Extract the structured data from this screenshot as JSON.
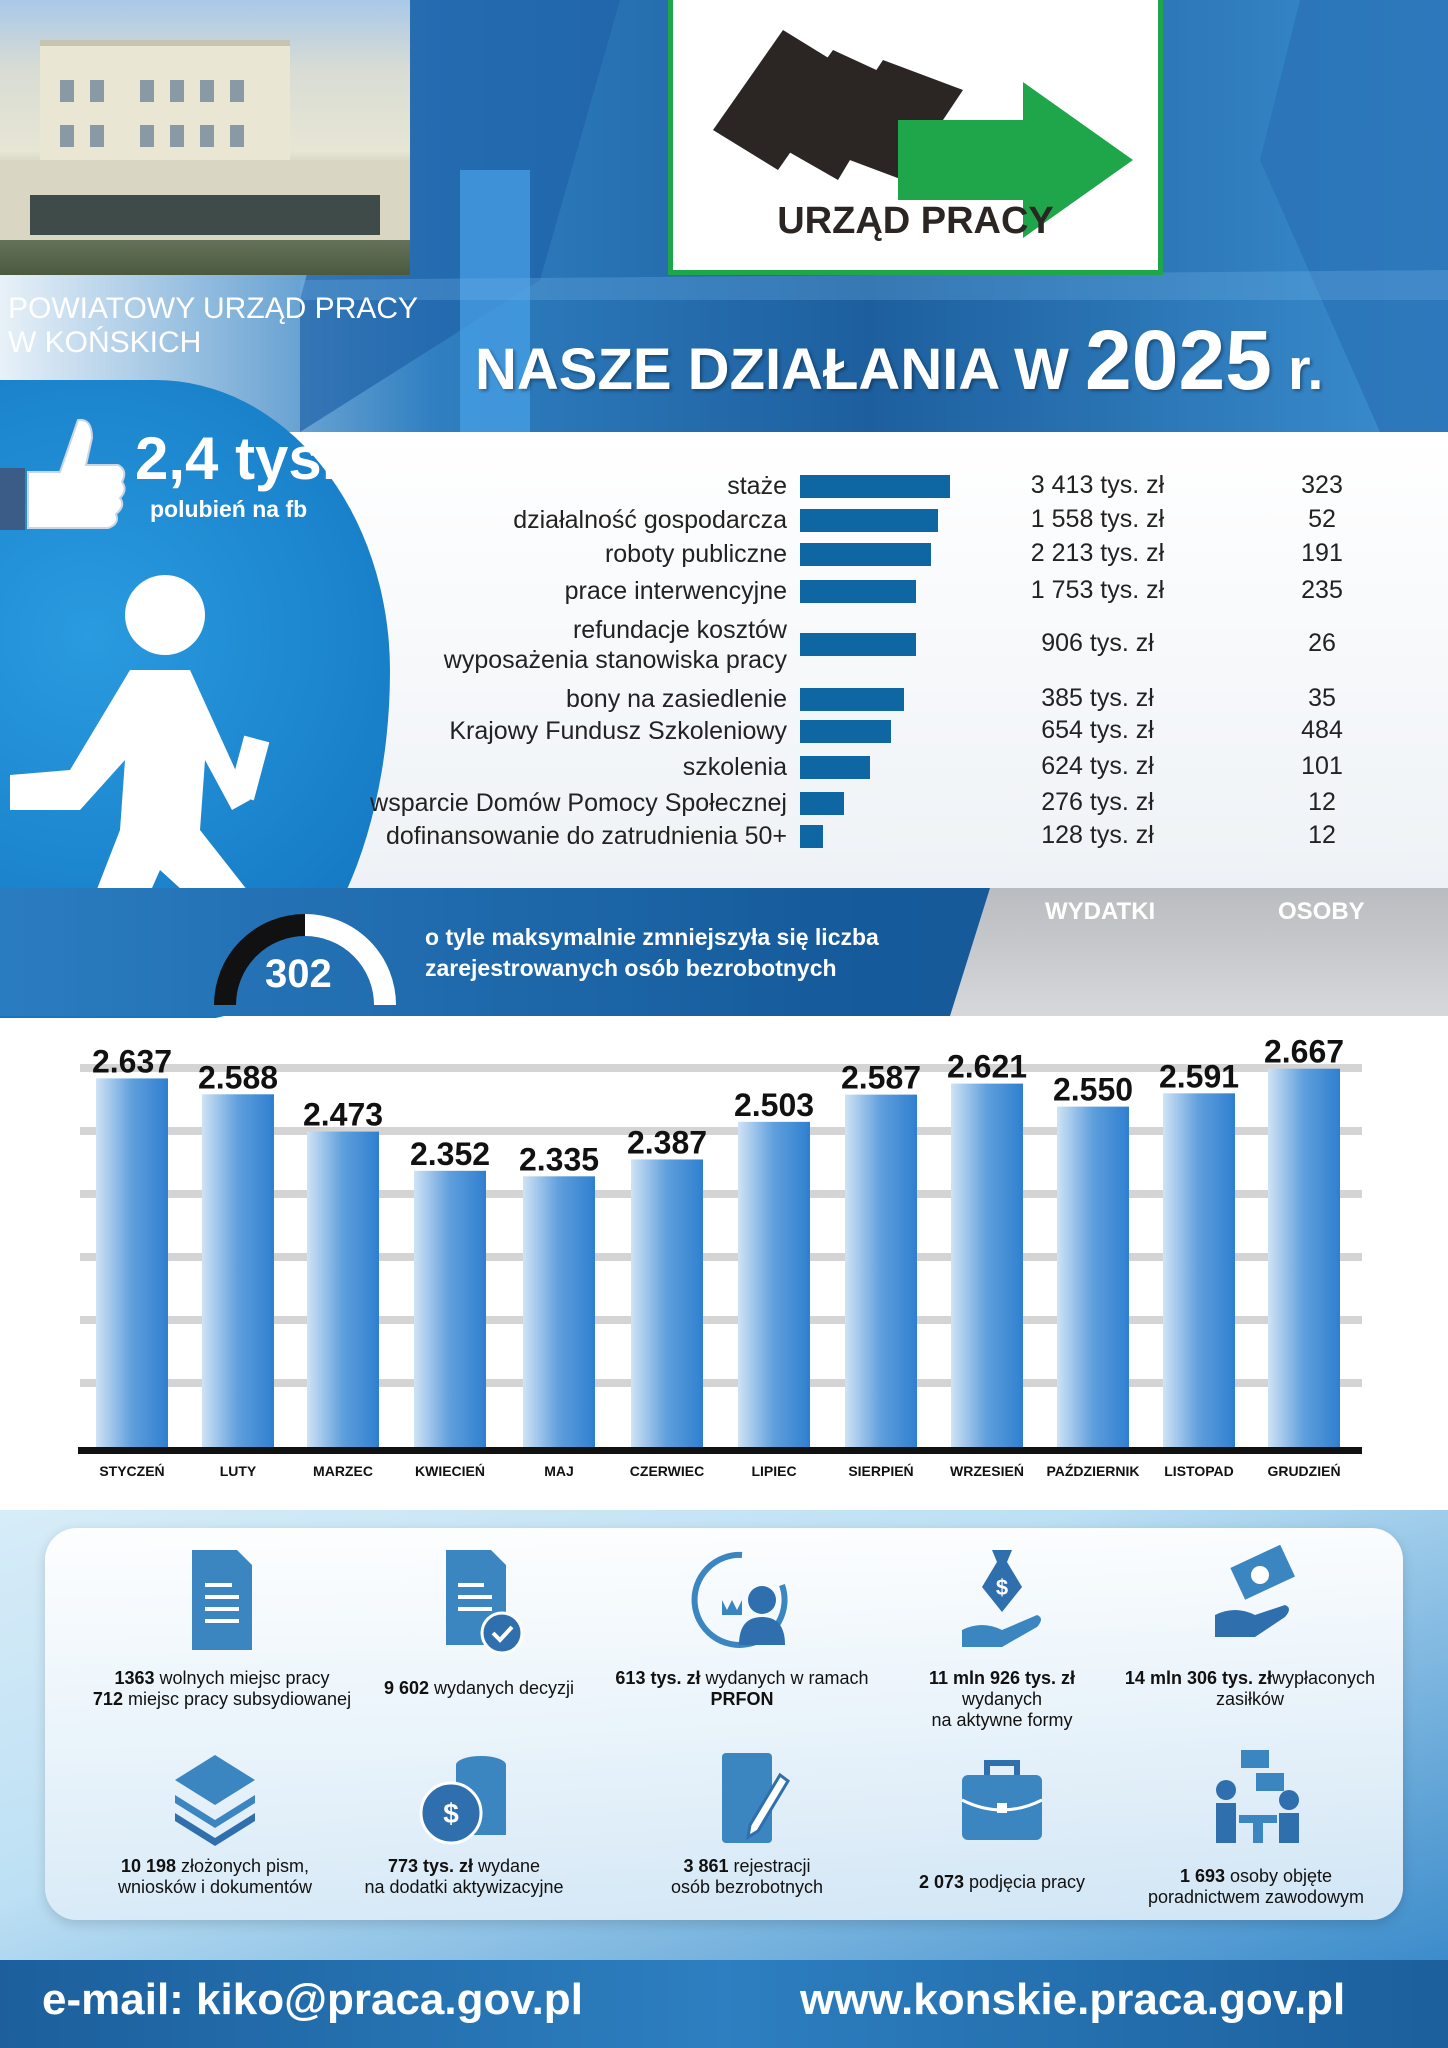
{
  "header": {
    "org_line1": "POWIATOWY URZĄD PRACY",
    "org_line2": "W KOŃSKICH",
    "logo_text": "URZĄD PRACY",
    "title": "NASZE DZIAŁANIA W",
    "year": "2025",
    "year_suffix": "r.",
    "colors": {
      "logo_green": "#1fa64a",
      "logo_dark": "#2b2623",
      "brand_blue": "#1d5f9e"
    }
  },
  "facebook": {
    "value": "2,4 tys.",
    "label": "polubień na fb",
    "icon": "thumbs-up-icon"
  },
  "activities": {
    "bar_color": "#0e66a3",
    "headers": {
      "money": "WYDATKI",
      "people": "OSOBY"
    },
    "rows": [
      {
        "label": "staże",
        "money": "3 413 tys. zł",
        "people": "323"
      },
      {
        "label": "działalność gospodarcza",
        "money": "1 558 tys. zł",
        "people": "52"
      },
      {
        "label": "roboty publiczne",
        "money": "2 213 tys. zł",
        "people": "191"
      },
      {
        "label": "prace interwencyjne",
        "money": "1 753 tys. zł",
        "people": "235"
      },
      {
        "label": "refundacje kosztów\nwyposażenia stanowiska pracy",
        "money": "906 tys. zł",
        "people": "26"
      },
      {
        "label": "bony na zasiedlenie",
        "money": "385 tys. zł",
        "people": "35"
      },
      {
        "label": "Krajowy Fundusz Szkoleniowy",
        "money": "654 tys. zł",
        "people": "484"
      },
      {
        "label": "szkolenia",
        "money": "624 tys. zł",
        "people": "101"
      },
      {
        "label": "wsparcie Domów Pomocy Społecznej",
        "money": "276 tys. zł",
        "people": "12"
      },
      {
        "label": "dofinansowanie do zatrudnienia 50+",
        "money": "128 tys. zł",
        "people": "12"
      }
    ]
  },
  "decrease": {
    "value": "302",
    "text_line1": "o tyle maksymalnie zmniejszyła się liczba",
    "text_line2": "zarejestrowanych osób bezrobotnych"
  },
  "chart_data": {
    "type": "bar",
    "title": "",
    "xlabel": "",
    "ylabel": "",
    "grid": true,
    "ylim": [
      1500,
      2700
    ],
    "categories": [
      "STYCZEŃ",
      "LUTY",
      "MARZEC",
      "KWIECIEŃ",
      "MAJ",
      "CZERWIEC",
      "LIPIEC",
      "SIERPIEŃ",
      "WRZESIEŃ",
      "PAŹDZIERNIK",
      "LISTOPAD",
      "GRUDZIEŃ"
    ],
    "values": [
      2637,
      2588,
      2473,
      2352,
      2335,
      2387,
      2503,
      2587,
      2621,
      2550,
      2591,
      2667
    ],
    "data_labels": [
      "2.637",
      "2.588",
      "2.473",
      "2.352",
      "2.335",
      "2.387",
      "2.503",
      "2.587",
      "2.621",
      "2.550",
      "2.591",
      "2.667"
    ],
    "bar_color": "#2f7fd0"
  },
  "stats": [
    {
      "icon": "document-icon",
      "bold1": "1363",
      "text1": " wolnych miejsc pracy",
      "bold2": "712",
      "text2": " miejsc pracy subsydiowanej"
    },
    {
      "icon": "document-check-icon",
      "bold1": "9 602",
      "text1": " wydanych decyzji"
    },
    {
      "icon": "clock-person-icon",
      "bold1": "613 tys. zł",
      "text1": " wydanych w ramach",
      "bold2": "PRFON"
    },
    {
      "icon": "money-bag-hand-icon",
      "bold1": "11 mln 926 tys. zł",
      "text1": "wydanych",
      "text2": "na aktywne formy"
    },
    {
      "icon": "cash-hand-icon",
      "bold1": "14 mln 306 tys. zł",
      "text1": "wypłaconych zasiłków"
    },
    {
      "icon": "layers-icon",
      "bold1": "10 198",
      "text1": " złożonych pism,",
      "text2": "wniosków i dokumentów"
    },
    {
      "icon": "coins-icon",
      "bold1": "773 tys. zł",
      "text1": " wydane",
      "text2": "na dodatki aktywizacyjne"
    },
    {
      "icon": "notepad-pen-icon",
      "bold1": "3 861",
      "text1": " rejestracji",
      "text2": "osób bezrobotnych"
    },
    {
      "icon": "briefcase-icon",
      "bold1": "2 073",
      "text1": " podjęcia pracy"
    },
    {
      "icon": "consulting-icon",
      "bold1": "1 693",
      "text1": " osoby objęte",
      "text2": "poradnictwem zawodowym"
    }
  ],
  "footer": {
    "email": "e-mail: kiko@praca.gov.pl",
    "website": "www.konskie.praca.gov.pl"
  }
}
